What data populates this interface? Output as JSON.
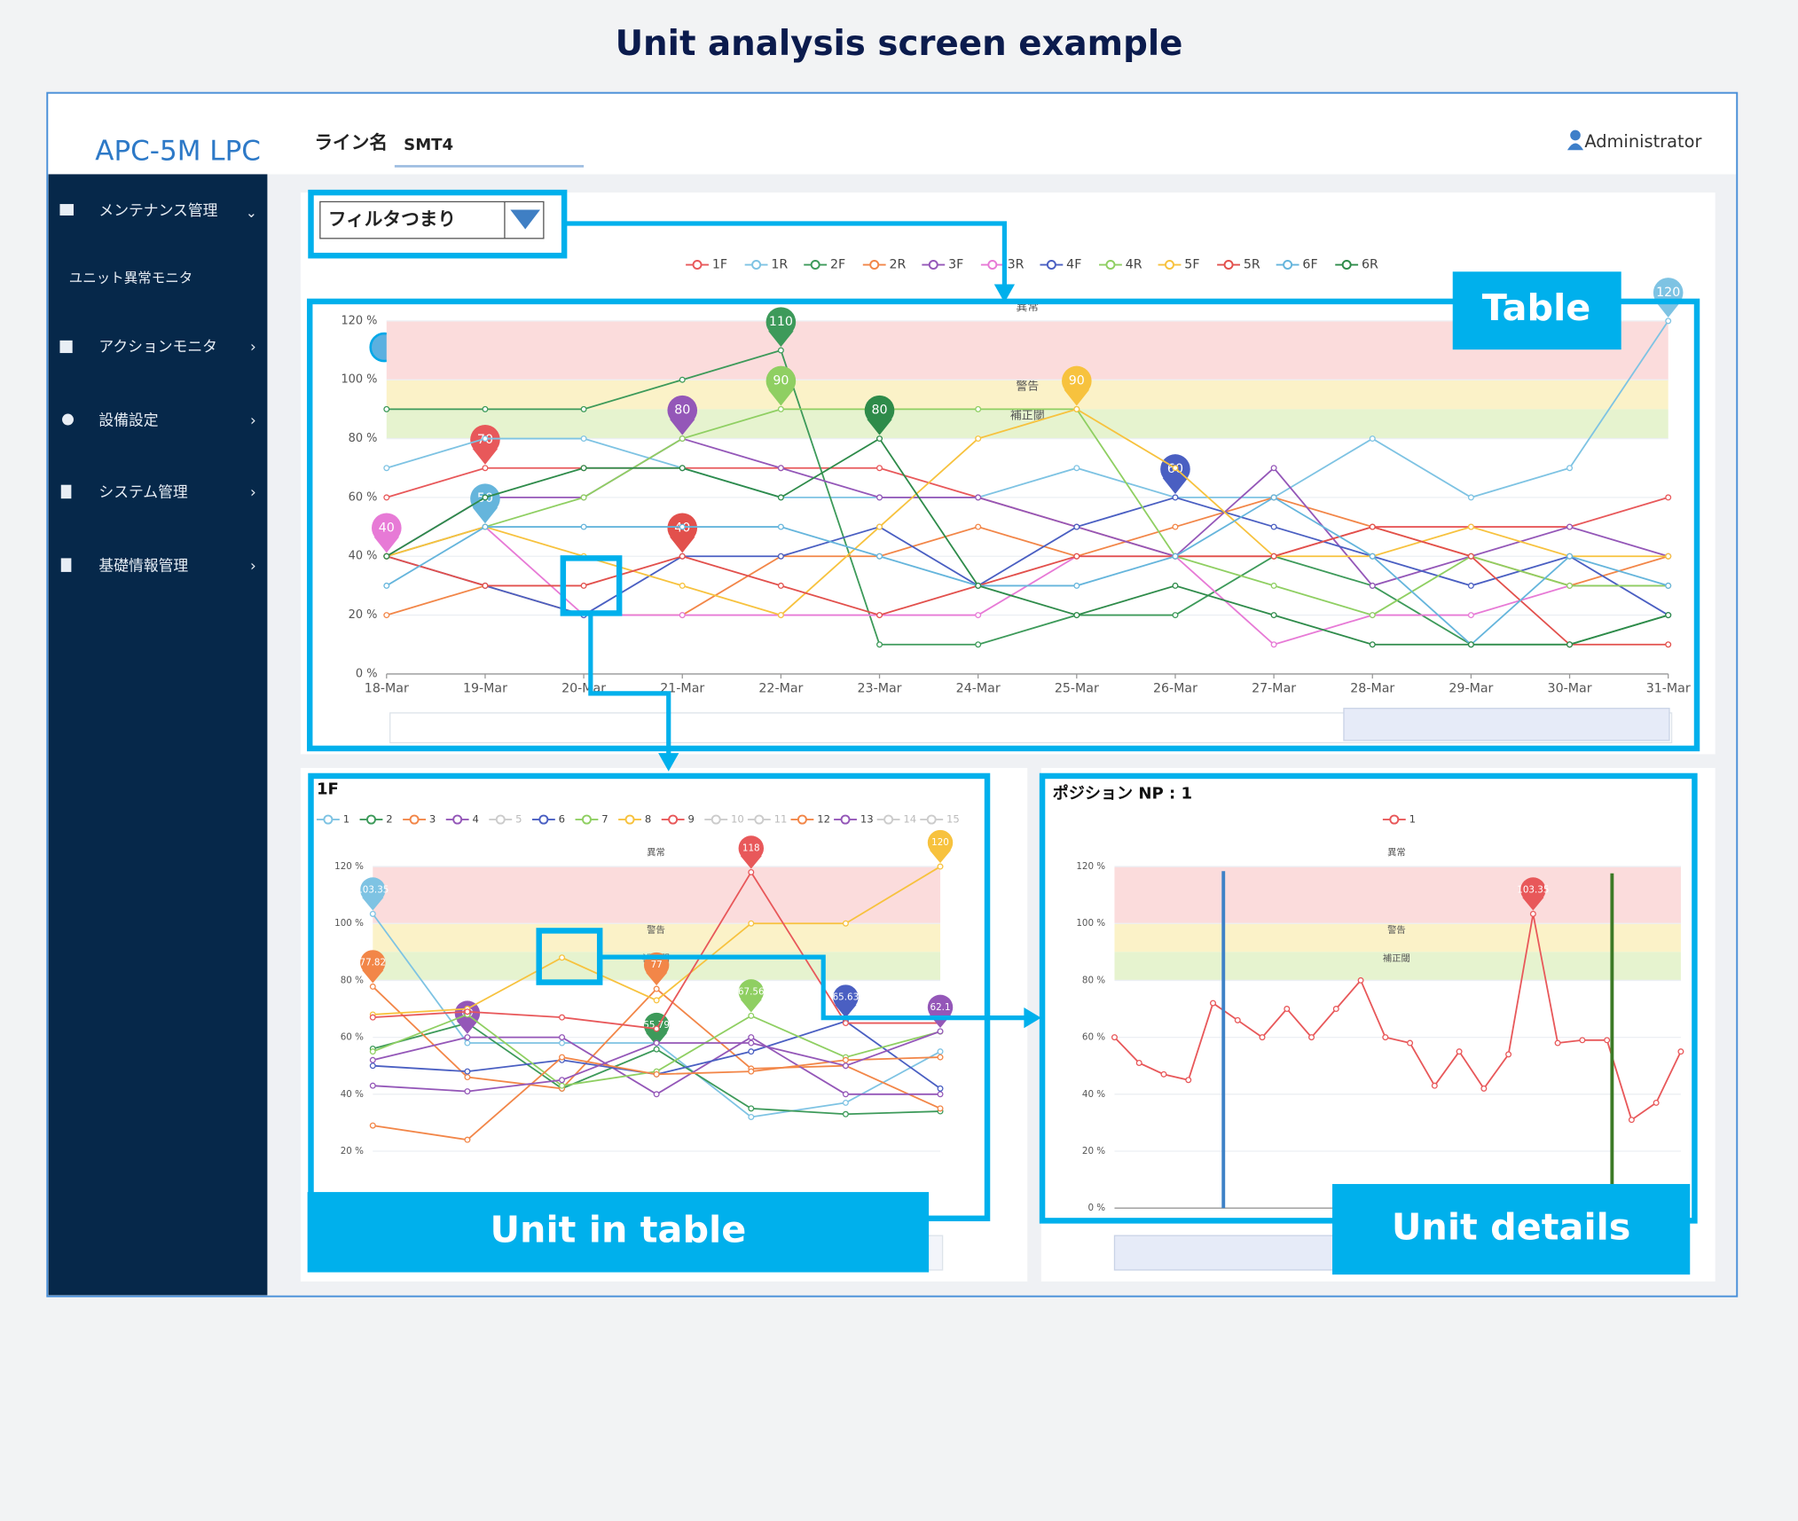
{
  "title": "Unit analysis screen example",
  "app": {
    "logo": "APC-5M LPC",
    "line_label": "ライン名",
    "line_value": "SMT4",
    "user": "Administrator"
  },
  "sidebar": [
    "メンテナンス管理",
    "ユニット異常モニタ",
    "アクションモニタ",
    "設備設定",
    "システム管理",
    "基礎情報管理"
  ],
  "filter": "フィルタつまり",
  "callouts": [
    "Table",
    "Unit in table",
    "Unit details"
  ],
  "charts": {
    "table": {
      "type": "line",
      "categories": [
        "18-Mar",
        "19-Mar",
        "20-Mar",
        "21-Mar",
        "22-Mar",
        "23-Mar",
        "24-Mar",
        "25-Mar",
        "26-Mar",
        "27-Mar",
        "28-Mar",
        "29-Mar",
        "30-Mar",
        "31-Mar"
      ],
      "ylim": [
        0,
        120
      ],
      "yticks": [
        {
          "value": 0,
          "label": "0 %"
        },
        {
          "value": 20,
          "label": "20 %"
        },
        {
          "value": 40,
          "label": "40 %"
        },
        {
          "value": 60,
          "label": "60 %"
        },
        {
          "value": 80,
          "label": "80 %"
        },
        {
          "value": 100,
          "label": "100 %"
        },
        {
          "value": 120,
          "label": "120 %"
        }
      ],
      "bands": [
        {
          "from": 100,
          "to": 120,
          "color": "#fbdcdc",
          "label": "異常"
        },
        {
          "from": 90,
          "to": 100,
          "color": "#fbf2c8",
          "label": "警告"
        },
        {
          "from": 80,
          "to": 90,
          "color": "#e6f3cf",
          "label": "補正閾"
        }
      ],
      "series": [
        {
          "name": "1F",
          "color": "#e8585a",
          "values": [
            60,
            70,
            70,
            70,
            70,
            70,
            60,
            50,
            40,
            40,
            50,
            50,
            50,
            60
          ],
          "pins": [
            1
          ]
        },
        {
          "name": "1R",
          "color": "#7ec3e3",
          "values": [
            70,
            80,
            80,
            70,
            60,
            60,
            60,
            70,
            60,
            60,
            80,
            60,
            70,
            120
          ],
          "pins": [
            13
          ]
        },
        {
          "name": "2F",
          "color": "#3d9a5a",
          "values": [
            90,
            90,
            90,
            100,
            110,
            10,
            10,
            20,
            20,
            40,
            30,
            10,
            10,
            20
          ],
          "pins": [
            4
          ]
        },
        {
          "name": "2R",
          "color": "#f28648",
          "values": [
            20,
            30,
            20,
            20,
            40,
            40,
            50,
            40,
            50,
            60,
            50,
            40,
            30,
            40
          ],
          "pins": []
        },
        {
          "name": "3F",
          "color": "#9457b8",
          "values": [
            40,
            60,
            60,
            80,
            70,
            60,
            60,
            50,
            40,
            70,
            30,
            40,
            50,
            40
          ],
          "pins": [
            3
          ]
        },
        {
          "name": "3R",
          "color": "#e77ad6",
          "values": [
            40,
            50,
            20,
            20,
            20,
            20,
            20,
            40,
            40,
            10,
            20,
            20,
            30,
            30
          ],
          "pins": [
            0
          ]
        },
        {
          "name": "4F",
          "color": "#4a5fc2",
          "values": [
            40,
            30,
            20,
            40,
            40,
            50,
            30,
            50,
            60,
            50,
            40,
            30,
            40,
            20
          ],
          "pins": [
            8
          ]
        },
        {
          "name": "4R",
          "color": "#8fcf62",
          "values": [
            40,
            50,
            60,
            80,
            90,
            90,
            90,
            90,
            40,
            30,
            20,
            40,
            30,
            30
          ],
          "pins": [
            4
          ]
        },
        {
          "name": "5F",
          "color": "#f7c23e",
          "values": [
            40,
            50,
            40,
            30,
            20,
            50,
            80,
            90,
            70,
            40,
            40,
            50,
            40,
            40
          ],
          "pins": [
            7
          ]
        },
        {
          "name": "5R",
          "color": "#e2504c",
          "values": [
            40,
            30,
            30,
            40,
            30,
            20,
            30,
            40,
            40,
            40,
            50,
            40,
            10,
            10
          ],
          "pins": [
            3
          ]
        },
        {
          "name": "6F",
          "color": "#65b5dc",
          "values": [
            30,
            50,
            50,
            50,
            50,
            40,
            30,
            30,
            40,
            60,
            40,
            10,
            40,
            30
          ],
          "pins": [
            1
          ]
        },
        {
          "name": "6R",
          "color": "#2e8b4a",
          "values": [
            40,
            60,
            70,
            70,
            60,
            80,
            30,
            20,
            30,
            20,
            10,
            10,
            10,
            20
          ],
          "pins": [
            5
          ]
        }
      ]
    },
    "unit": {
      "type": "line",
      "title": "1F",
      "categories": [
        null,
        null,
        null,
        null,
        null,
        null,
        null
      ],
      "ylim": [
        0,
        120
      ],
      "yticks": [
        {
          "value": 20,
          "label": "20 %"
        },
        {
          "value": 40,
          "label": "40 %"
        },
        {
          "value": 60,
          "label": "60 %"
        },
        {
          "value": 80,
          "label": "80 %"
        },
        {
          "value": 100,
          "label": "100 %"
        },
        {
          "value": 120,
          "label": "120 %"
        }
      ],
      "bands": [
        {
          "from": 100,
          "to": 120,
          "color": "#fbdcdc",
          "label": "異常"
        },
        {
          "from": 90,
          "to": 100,
          "color": "#fbf2c8",
          "label": "警告"
        },
        {
          "from": 80,
          "to": 90,
          "color": "#e6f3cf",
          "label": "補正閾"
        }
      ],
      "series": [
        {
          "name": "1",
          "color": "#7ec3e3",
          "values": [
            103.35,
            58,
            58,
            58,
            32,
            37,
            55
          ],
          "pins": [
            0
          ]
        },
        {
          "name": "2",
          "color": "#3d9a5a",
          "values": [
            56,
            65,
            42,
            55.79,
            35,
            33,
            34
          ],
          "pins": [
            3
          ]
        },
        {
          "name": "3",
          "color": "#f28648",
          "values": [
            77.82,
            46,
            42,
            77,
            49,
            50,
            35
          ],
          "pins": [
            0,
            3
          ]
        },
        {
          "name": "4",
          "color": "#9457b8",
          "values": [
            52,
            60,
            60,
            40,
            60,
            40,
            40
          ],
          "pins": [
            1
          ]
        },
        {
          "name": "5",
          "color": "#cccccc",
          "visible": false
        },
        {
          "name": "6",
          "color": "#4a5fc2",
          "values": [
            50,
            48,
            52,
            47,
            55,
            65.63,
            42
          ],
          "pins": [
            5
          ]
        },
        {
          "name": "7",
          "color": "#8fcf62",
          "values": [
            55,
            68,
            43,
            48,
            67.56,
            53,
            62
          ],
          "pins": [
            4
          ]
        },
        {
          "name": "8",
          "color": "#f7c23e",
          "values": [
            68,
            70,
            88,
            73,
            100,
            100,
            120
          ],
          "pins": [
            6
          ]
        },
        {
          "name": "9",
          "color": "#e8585a",
          "values": [
            67,
            69,
            67,
            63,
            118,
            65,
            65
          ],
          "pins": [
            4
          ]
        },
        {
          "name": "10",
          "color": "#cccccc",
          "visible": false
        },
        {
          "name": "11",
          "color": "#cccccc",
          "visible": false
        },
        {
          "name": "12",
          "color": "#f28648",
          "values": [
            29,
            24,
            53,
            47,
            48,
            52,
            53
          ],
          "pins": []
        },
        {
          "name": "13",
          "color": "#9457b8",
          "values": [
            43,
            41,
            45,
            58,
            58,
            50,
            62.1
          ],
          "pins": [
            6
          ]
        },
        {
          "name": "14",
          "color": "#cccccc",
          "visible": false
        },
        {
          "name": "15",
          "color": "#cccccc",
          "visible": false
        }
      ]
    },
    "detail": {
      "type": "line",
      "title": "ポジション NP : 1",
      "categories": [
        null,
        null,
        null,
        null,
        null,
        null,
        null,
        null,
        null,
        null,
        null,
        null,
        null,
        null,
        null,
        null,
        null,
        null,
        null,
        null,
        null,
        null,
        null,
        null
      ],
      "ylim": [
        0,
        120
      ],
      "yticks": [
        {
          "value": 0,
          "label": "0 %"
        },
        {
          "value": 20,
          "label": "20 %"
        },
        {
          "value": 40,
          "label": "40 %"
        },
        {
          "value": 60,
          "label": "60 %"
        },
        {
          "value": 80,
          "label": "80 %"
        },
        {
          "value": 100,
          "label": "100 %"
        },
        {
          "value": 120,
          "label": "120 %"
        }
      ],
      "bands": [
        {
          "from": 100,
          "to": 120,
          "color": "#fbdcdc",
          "label": "異常"
        },
        {
          "from": 90,
          "to": 100,
          "color": "#fbf2c8",
          "label": "警告"
        },
        {
          "from": 80,
          "to": 90,
          "color": "#e6f3cf",
          "label": "補正閾"
        }
      ],
      "series": [
        {
          "name": "1",
          "color": "#e8585a",
          "values": [
            60,
            51,
            47,
            45,
            72,
            66,
            60,
            70,
            60,
            70,
            80,
            60,
            58,
            43,
            55,
            42,
            54,
            103.35,
            58,
            59,
            59,
            31,
            37,
            55
          ],
          "pins": [
            17
          ]
        }
      ]
    }
  }
}
